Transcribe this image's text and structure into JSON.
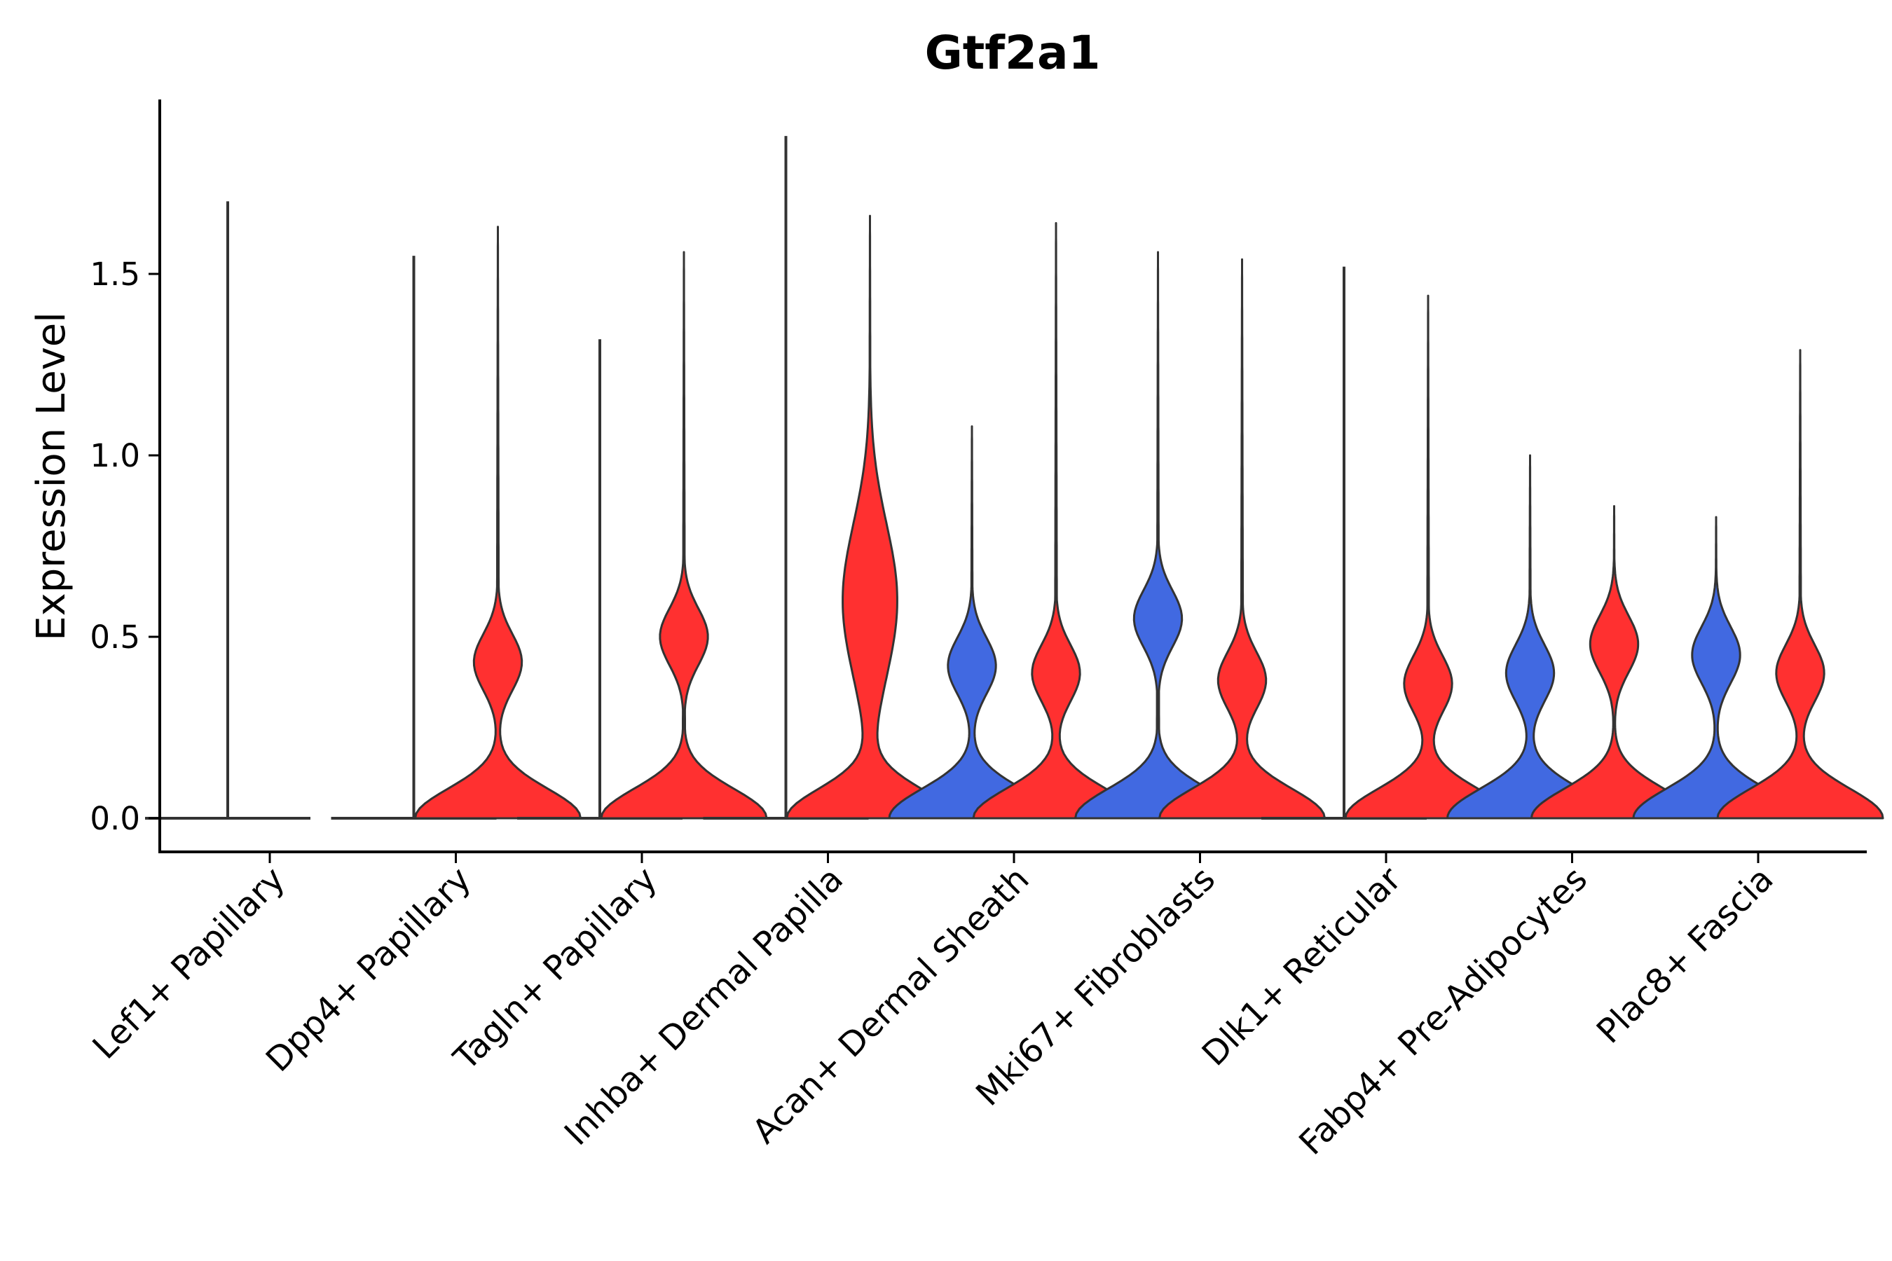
{
  "chart_data": {
    "type": "violin",
    "title": "Gtf2a1",
    "xlabel": "",
    "ylabel": "Expression Level",
    "ylim": [
      -0.1,
      1.98
    ],
    "yticks": [
      0.0,
      0.5,
      1.0,
      1.5
    ],
    "ytick_labels": [
      "0.0",
      "0.5",
      "1.0",
      "1.5"
    ],
    "grid": false,
    "legend": "none",
    "colors": {
      "blue": "#4169E1",
      "red": "#FF3030",
      "none": "none",
      "outline": "#333333"
    },
    "categories": [
      "Lef1+ Papillary",
      "Dpp4+ Papillary",
      "Tagln+ Papillary",
      "Inhba+ Dermal Papilla",
      "Acan+ Dermal Sheath",
      "Mki67+ Fibroblasts",
      "Dlk1+ Reticular",
      "Fabp4+ Pre-Adipocytes",
      "Plac8+ Fascia"
    ],
    "violins": [
      {
        "category": "Lef1+ Papillary",
        "group": "left",
        "color": "none",
        "max": 1.7,
        "profile": "flat"
      },
      {
        "category": "Dpp4+ Papillary",
        "group": "left",
        "color": "none",
        "max": 1.55,
        "profile": "flat"
      },
      {
        "category": "Dpp4+ Papillary",
        "group": "right",
        "color": "red",
        "max": 1.63,
        "profile": "bimodal",
        "mode2": 0.43
      },
      {
        "category": "Tagln+ Papillary",
        "group": "left",
        "color": "none",
        "max": 1.32,
        "profile": "flat"
      },
      {
        "category": "Tagln+ Papillary",
        "group": "right",
        "color": "red",
        "max": 1.56,
        "profile": "bimodal",
        "mode2": 0.5
      },
      {
        "category": "Inhba+ Dermal Papilla",
        "group": "left",
        "color": "none",
        "max": 1.88,
        "profile": "flat"
      },
      {
        "category": "Inhba+ Dermal Papilla",
        "group": "right",
        "color": "red",
        "max": 1.66,
        "profile": "broad",
        "mode2": 0.6
      },
      {
        "category": "Acan+ Dermal Sheath",
        "group": "left",
        "color": "blue",
        "max": 1.08,
        "profile": "bimodal",
        "mode2": 0.42
      },
      {
        "category": "Acan+ Dermal Sheath",
        "group": "right",
        "color": "red",
        "max": 1.64,
        "profile": "bimodal",
        "mode2": 0.4
      },
      {
        "category": "Mki67+ Fibroblasts",
        "group": "left",
        "color": "blue",
        "max": 1.56,
        "profile": "bimodal",
        "mode2": 0.55
      },
      {
        "category": "Mki67+ Fibroblasts",
        "group": "right",
        "color": "red",
        "max": 1.54,
        "profile": "bimodal",
        "mode2": 0.38
      },
      {
        "category": "Dlk1+ Reticular",
        "group": "left",
        "color": "none",
        "max": 1.52,
        "profile": "flat"
      },
      {
        "category": "Dlk1+ Reticular",
        "group": "right",
        "color": "red",
        "max": 1.44,
        "profile": "bimodal",
        "mode2": 0.37
      },
      {
        "category": "Fabp4+ Pre-Adipocytes",
        "group": "left",
        "color": "blue",
        "max": 1.0,
        "profile": "bimodal",
        "mode2": 0.4
      },
      {
        "category": "Fabp4+ Pre-Adipocytes",
        "group": "right",
        "color": "red",
        "max": 0.86,
        "profile": "bimodal",
        "mode2": 0.48
      },
      {
        "category": "Plac8+ Fascia",
        "group": "left",
        "color": "blue",
        "max": 0.83,
        "profile": "bimodal",
        "mode2": 0.45
      },
      {
        "category": "Plac8+ Fascia",
        "group": "right",
        "color": "red",
        "max": 1.29,
        "profile": "bimodal",
        "mode2": 0.4
      }
    ]
  }
}
